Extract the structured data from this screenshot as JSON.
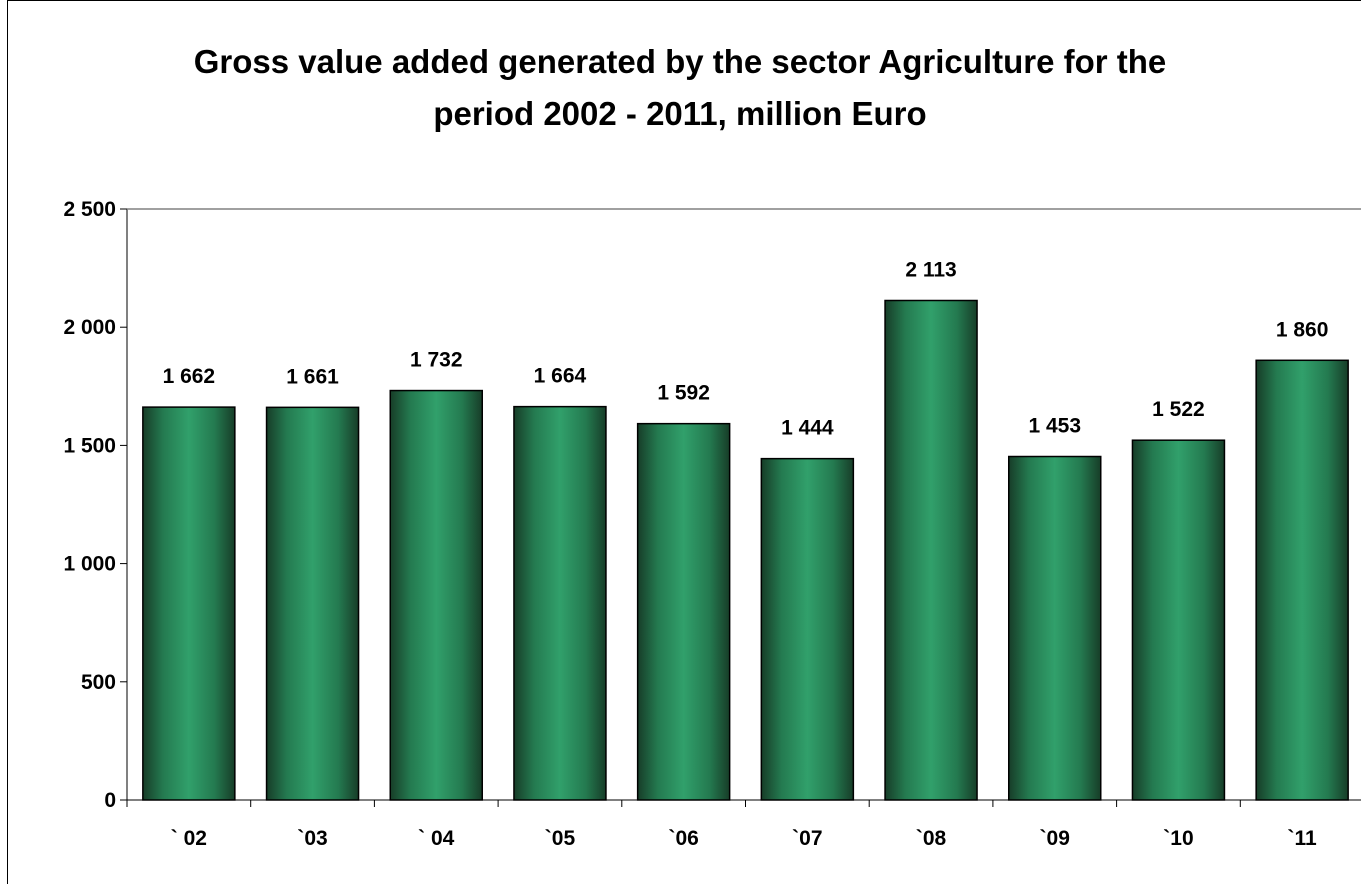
{
  "chart_data": {
    "type": "bar",
    "title": [
      "Gross value added generated by the sector Agriculture for the",
      "period 2002 - 2011, million Euro"
    ],
    "categories": [
      "` 02",
      "`03",
      "` 04",
      "`05",
      "`06",
      "`07",
      "`08",
      "`09",
      "`10",
      "`11"
    ],
    "values": [
      1662,
      1661,
      1732,
      1664,
      1592,
      1444,
      2113,
      1453,
      1522,
      1860
    ],
    "value_labels": [
      "1 662",
      "1 661",
      "1 732",
      "1 664",
      "1 592",
      "1 444",
      "2 113",
      "1 453",
      "1 522",
      "1 860"
    ],
    "yticks": [
      0,
      500,
      1000,
      1500,
      2000,
      2500
    ],
    "ytick_labels": [
      "0",
      "500",
      "1 000",
      "1 500",
      "2 000",
      "2 500"
    ],
    "ylim": [
      0,
      2500
    ],
    "xlabel": "",
    "ylabel": "",
    "grid": false,
    "legend": "none",
    "bar_color": "#2e9463",
    "bar_edge_color": "#1a4d33"
  }
}
